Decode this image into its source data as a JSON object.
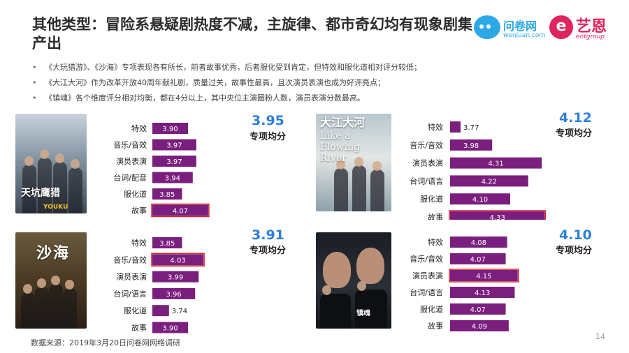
{
  "title": "其他类型：冒险系悬疑剧热度不减，主旋律、都市奇幻均有现象剧集产出",
  "logos": {
    "wenjuan_name": "问卷网",
    "wenjuan_url": "wenjuan.com",
    "yien_mark": "e",
    "yien_name": "艺恩",
    "yien_en": "entgroup"
  },
  "bullets": [
    "《大玩猎游》、《沙海》专项表现各有所长，前者故事优秀，后者服化受到肯定，但特效和服化道相对评分较低；",
    "《大江大河》作为改革开放40周年献礼剧，质量过关，故事性最高，且次演员表演也成为好评亮点；",
    "《镇魂》各个维度评分相对均衡，都在4分以上，其中央位主演圈粉人数，演员表演分数最高。"
  ],
  "posters": {
    "p1_title": "天坑鹰猎",
    "p1_brand": "YOUKU",
    "p2_title": "沙海",
    "p3_title": "大江大河",
    "p3_subtitle": "Like a Flowing River",
    "p4_title": "镇魂"
  },
  "average_label": "专项均分",
  "source": "数据来源：2019年3月20日问卷网网络调研",
  "page_number": "14",
  "colors": {
    "bar": "#7a1f7e",
    "highlight_border": "#d8232a",
    "average_number": "#2d7fd9",
    "title": "#2b2b2b"
  },
  "chart_data": [
    {
      "type": "bar",
      "orientation": "horizontal",
      "categories": [
        "特效",
        "音乐/音效",
        "演员表演",
        "台词/配音",
        "服化道",
        "故事"
      ],
      "values": [
        3.9,
        3.97,
        3.97,
        3.94,
        3.85,
        4.07
      ],
      "highlight": "故事",
      "average": "3.95"
    },
    {
      "type": "bar",
      "orientation": "horizontal",
      "categories": [
        "特效",
        "音乐/音效",
        "演员表演",
        "台词/语言",
        "服化道",
        "故事"
      ],
      "values": [
        3.85,
        4.03,
        3.99,
        3.96,
        3.74,
        3.9
      ],
      "highlight": "音乐/音效",
      "average": "3.91"
    },
    {
      "type": "bar",
      "orientation": "horizontal",
      "categories": [
        "特效",
        "音乐/音效",
        "演员表演",
        "台词/语言",
        "服化道",
        "故事"
      ],
      "values": [
        3.77,
        3.98,
        4.31,
        4.22,
        4.1,
        4.33
      ],
      "highlight": "故事",
      "average": "4.12"
    },
    {
      "type": "bar",
      "orientation": "horizontal",
      "categories": [
        "特效",
        "音乐/音效",
        "演员表演",
        "台词/语言",
        "服化道",
        "故事"
      ],
      "values": [
        4.08,
        4.07,
        4.15,
        4.13,
        4.07,
        4.09
      ],
      "highlight": "演员表演",
      "average": "4.10"
    }
  ]
}
